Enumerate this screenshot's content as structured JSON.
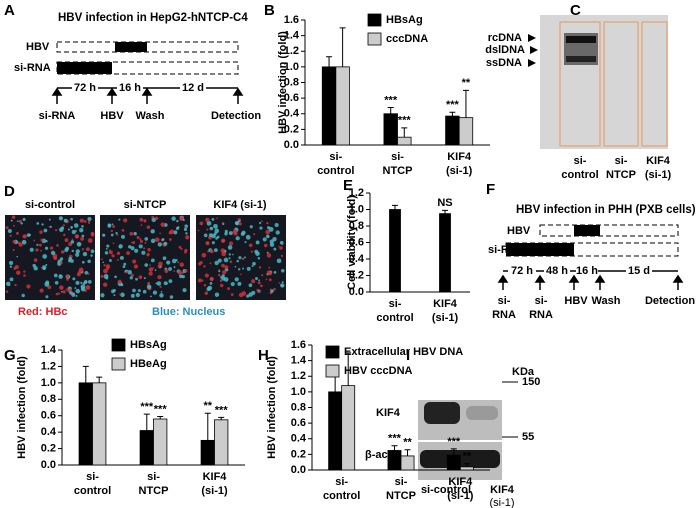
{
  "letters": [
    "A",
    "B",
    "C",
    "D",
    "E",
    "F",
    "G",
    "H",
    "I"
  ],
  "panel_a": {
    "title": "HBV infection in HepG2-hNTCP-C4",
    "rows": [
      "HBV",
      "si-RNA"
    ],
    "durations": [
      "72 h",
      "16 h",
      "12 d"
    ],
    "events": [
      "si-RNA",
      "HBV",
      "Wash",
      "Detection"
    ]
  },
  "panel_c": {
    "bands": [
      "rcDNA",
      "dslDNA",
      "ssDNA"
    ],
    "lanes": [
      [
        "si-",
        "control"
      ],
      [
        "si-",
        "NTCP"
      ],
      [
        "KIF4",
        "(si-1)"
      ]
    ]
  },
  "panel_d": {
    "lanes": [
      "si-control",
      "si-NTCP",
      "KIF4 (si-1)"
    ],
    "caption": [
      "Red: HBc",
      "Blue: Nucleus"
    ]
  },
  "panel_f": {
    "title": "HBV infection in PHH (PXB cells)",
    "rows": [
      "HBV",
      "si-RNA"
    ],
    "durations": [
      "72 h",
      "48 h",
      "16 h",
      "15 d"
    ],
    "events": [
      [
        "si-",
        "RNA"
      ],
      [
        "si-",
        "RNA"
      ],
      [
        "HBV"
      ],
      [
        "Wash"
      ],
      [
        "Detection"
      ]
    ]
  },
  "panel_i": {
    "unit": "KDa",
    "markers": [
      150,
      55
    ],
    "rows": [
      "KIF4",
      "β-actin"
    ],
    "lanes": [
      [
        "si-control"
      ],
      [
        "KIF4",
        "(si-1)"
      ]
    ]
  },
  "chart_data": [
    {
      "type": "bar",
      "ylabel": "HBV infection (fold)",
      "categories": [
        [
          "si-",
          "control"
        ],
        [
          "si-",
          "NTCP"
        ],
        [
          "KIF4",
          "(si-1)"
        ]
      ],
      "series": [
        {
          "name": "HBsAg",
          "color": "#000000",
          "values": [
            1.0,
            0.4,
            0.37
          ],
          "errors": [
            0.13,
            0.08,
            0.05
          ],
          "stars": [
            null,
            "***",
            "***"
          ]
        },
        {
          "name": "cccDNA",
          "color": "#cccccc",
          "values": [
            1.0,
            0.1,
            0.35
          ],
          "errors": [
            0.5,
            0.12,
            0.35
          ],
          "stars": [
            null,
            "***",
            "**"
          ]
        }
      ],
      "ylim": [
        0,
        1.6
      ],
      "yticks": [
        {
          "value": 0,
          "label": "0.0"
        },
        0.2,
        0.4,
        0.6,
        0.8,
        {
          "value": 1,
          "label": "1.0"
        },
        1.2,
        1.4,
        1.6
      ]
    },
    {
      "type": "bar",
      "ylabel": "Cell viability (fold)",
      "categories": [
        [
          "si-",
          "control"
        ],
        [
          "KIF4",
          "(si-1)"
        ]
      ],
      "series": [
        {
          "color": "#000000",
          "values": [
            1.0,
            0.95
          ],
          "errors": [
            0.05,
            0.04
          ],
          "stars": [
            null,
            "NS"
          ]
        }
      ],
      "ylim": [
        0,
        1.2
      ],
      "yticks": [
        {
          "value": 0,
          "label": "0.0"
        },
        0.2,
        0.4,
        0.6,
        0.8,
        {
          "value": 1,
          "label": "1.0"
        },
        1.2
      ]
    },
    {
      "type": "bar",
      "ylabel": "HBV infection (fold)",
      "categories": [
        [
          "si-",
          "control"
        ],
        [
          "si-",
          "NTCP"
        ],
        [
          "KIF4",
          "(si-1)"
        ]
      ],
      "series": [
        {
          "name": "HBsAg",
          "color": "#000000",
          "values": [
            1.0,
            0.42,
            0.3
          ],
          "errors": [
            0.2,
            0.2,
            0.33
          ],
          "stars": [
            null,
            "***",
            "**"
          ]
        },
        {
          "name": "HBeAg",
          "color": "#cccccc",
          "values": [
            1.0,
            0.56,
            0.55
          ],
          "errors": [
            0.07,
            0.03,
            0.03
          ],
          "stars": [
            null,
            "***",
            "***"
          ]
        }
      ],
      "ylim": [
        0,
        1.4
      ],
      "yticks": [
        {
          "value": 0,
          "label": "0.0"
        },
        0.2,
        0.4,
        0.6,
        0.8,
        {
          "value": 1,
          "label": "1.0"
        },
        1.2,
        1.4
      ]
    },
    {
      "type": "bar",
      "ylabel": "HBV infection (fold)",
      "categories": [
        [
          "si-",
          "control"
        ],
        [
          "si-",
          "NTCP"
        ],
        [
          "KIF4",
          "(si-1)"
        ]
      ],
      "series": [
        {
          "name": "Extracellular HBV DNA",
          "color": "#000000",
          "values": [
            1.0,
            0.25,
            0.19
          ],
          "errors": [
            0.22,
            0.06,
            0.08
          ],
          "stars": [
            null,
            "***",
            "***"
          ]
        },
        {
          "name": "HBV cccDNA",
          "color": "#cccccc",
          "values": [
            1.08,
            0.18,
            0.04
          ],
          "errors": [
            0.42,
            0.08,
            0.04
          ],
          "stars": [
            null,
            "**",
            "**"
          ]
        }
      ],
      "ylim": [
        0,
        1.6
      ],
      "yticks": [
        {
          "value": 0,
          "label": "0.0"
        },
        0.2,
        0.4,
        0.6,
        0.8,
        {
          "value": 1,
          "label": "1.0"
        },
        1.2,
        1.4,
        1.6
      ]
    }
  ]
}
